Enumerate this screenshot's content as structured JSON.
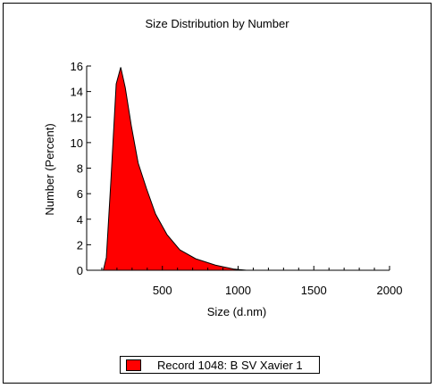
{
  "chart_data": {
    "type": "area",
    "title": "Size Distribution by Number",
    "xlabel": "Size (d.nm)",
    "ylabel": "Number (Percent)",
    "xlim": [
      0,
      2000
    ],
    "ylim": [
      0,
      16
    ],
    "x_ticks": [
      500,
      1000,
      1500,
      2000
    ],
    "y_ticks": [
      0,
      2,
      4,
      6,
      8,
      10,
      12,
      14,
      16
    ],
    "grid": false,
    "legend_position": "bottom",
    "series": [
      {
        "name": "Record 1048: B SV Xavier 1",
        "color": "#ff0000",
        "x": [
          110,
          130,
          160,
          195,
          225,
          255,
          295,
          340,
          395,
          455,
          530,
          615,
          720,
          850,
          970,
          1055
        ],
        "y": [
          0,
          1.0,
          7.0,
          14.6,
          15.9,
          14.3,
          11.3,
          8.4,
          6.4,
          4.4,
          2.8,
          1.6,
          0.9,
          0.4,
          0.1,
          0
        ]
      }
    ]
  }
}
